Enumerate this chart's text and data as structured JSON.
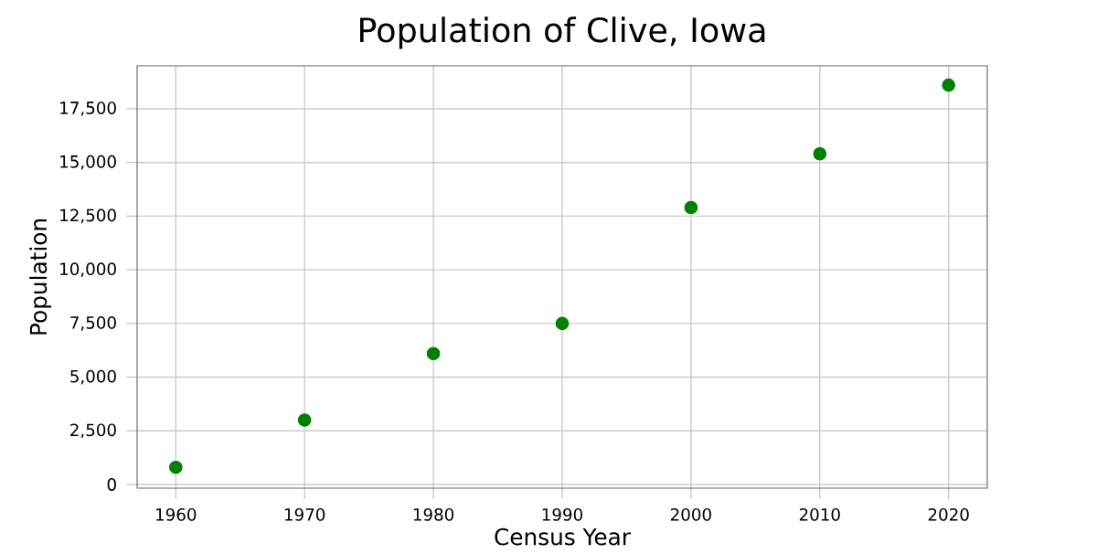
{
  "chart_data": {
    "type": "scatter",
    "title": "Population of Clive, Iowa",
    "xlabel": "Census Year",
    "ylabel": "Population",
    "x": [
      1960,
      1970,
      1980,
      1990,
      2000,
      2010,
      2020
    ],
    "values": [
      800,
      3000,
      6100,
      7500,
      12900,
      15400,
      18600
    ],
    "color": "#008000",
    "grid": true,
    "xlim": [
      1957,
      2023
    ],
    "ylim": [
      -170,
      19500
    ],
    "xticks": [
      1960,
      1970,
      1980,
      1990,
      2000,
      2010,
      2020
    ],
    "yticks": [
      0,
      {
        "value": 2500,
        "label": "2,500"
      },
      {
        "value": 5000,
        "label": "5,000"
      },
      {
        "value": 7500,
        "label": "7,500"
      },
      {
        "value": 10000,
        "label": "10,000"
      },
      {
        "value": 12500,
        "label": "12,500"
      },
      {
        "value": 15000,
        "label": "15,000"
      },
      {
        "value": 17500,
        "label": "17,500"
      }
    ]
  }
}
